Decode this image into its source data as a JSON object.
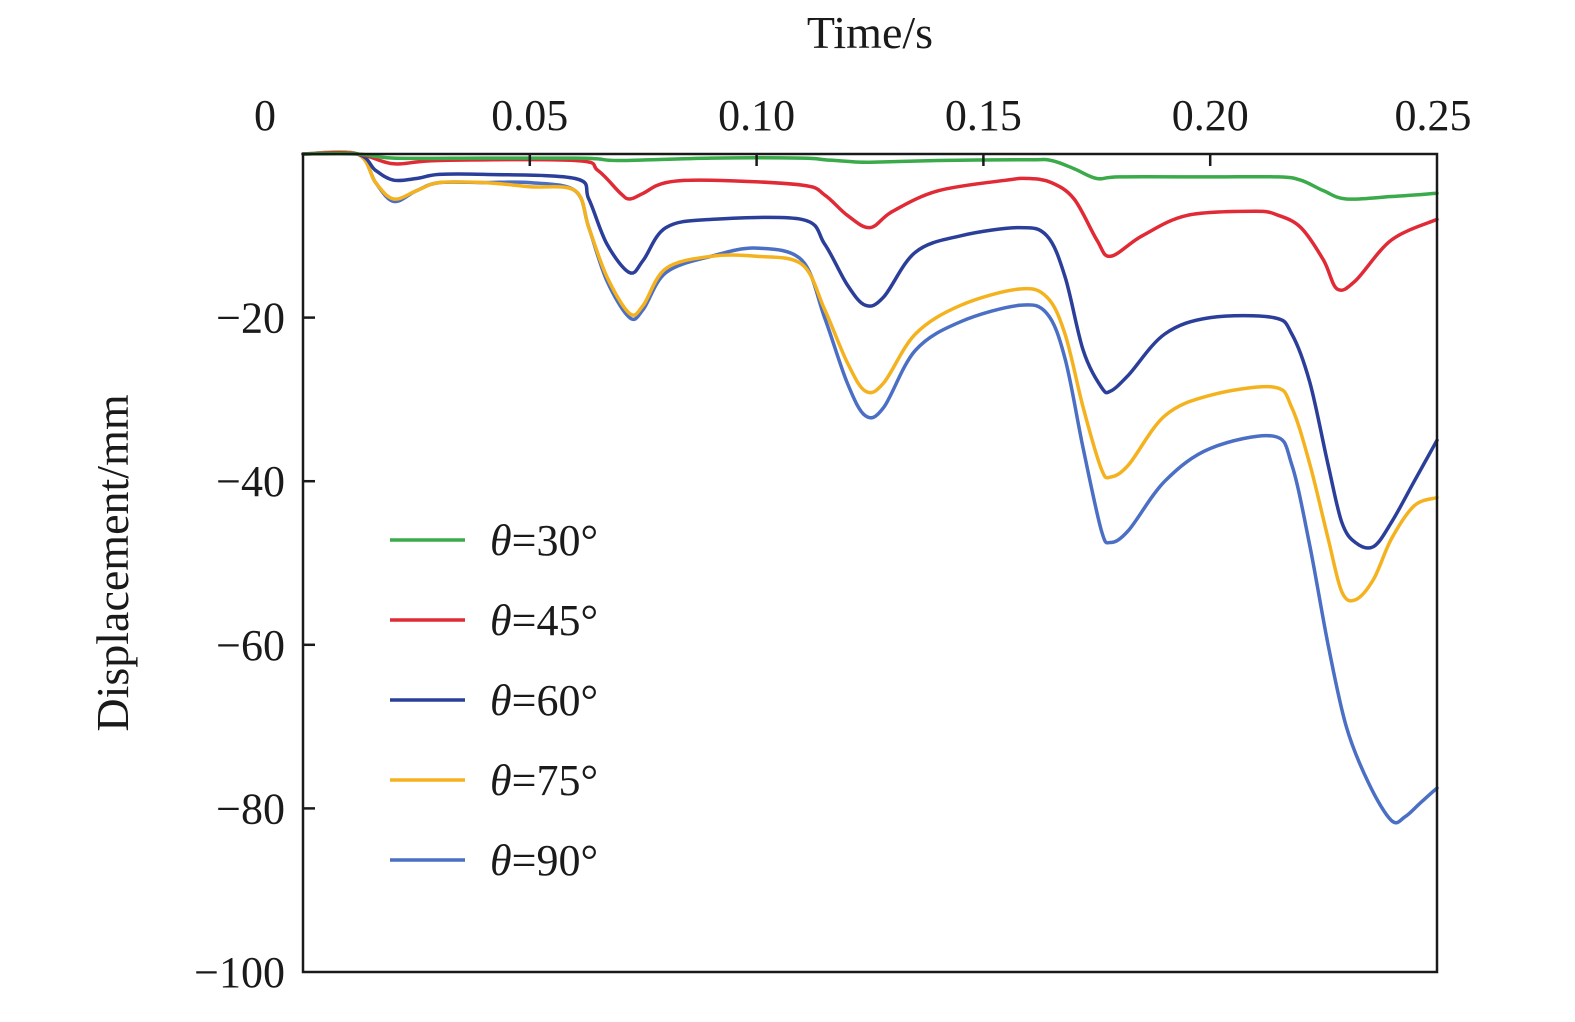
{
  "chart_data": {
    "type": "line",
    "title": "",
    "xlabel": "Time/s",
    "ylabel": "Displacement/mm",
    "xlim": [
      0,
      0.25
    ],
    "ylim": [
      -100,
      0
    ],
    "x_axis_position": "top",
    "x_ticks": [
      0,
      0.05,
      0.1,
      0.15,
      0.2,
      0.25
    ],
    "x_tick_labels": [
      "0",
      "0.05",
      "0.10",
      "0.15",
      "0.20",
      "0.25"
    ],
    "y_ticks": [
      0,
      -20,
      -40,
      -60,
      -80,
      -100
    ],
    "y_tick_labels": [
      "",
      "−20",
      "−40",
      "−60",
      "−80",
      "−100"
    ],
    "grid": false,
    "legend_position": "left-middle",
    "series": [
      {
        "name": "θ=30°",
        "name_symbol": "θ",
        "name_rest": "=30°",
        "color": "#3aaa4a",
        "x": [
          0,
          0.012,
          0.02,
          0.04,
          0.06,
          0.065,
          0.07,
          0.09,
          0.11,
          0.115,
          0.12,
          0.125,
          0.14,
          0.16,
          0.165,
          0.17,
          0.175,
          0.18,
          0.2,
          0.215,
          0.22,
          0.225,
          0.23,
          0.24,
          0.25
        ],
        "y": [
          0,
          0,
          -0.5,
          -0.5,
          -0.5,
          -0.6,
          -0.8,
          -0.5,
          -0.5,
          -0.7,
          -0.9,
          -1.0,
          -0.8,
          -0.7,
          -0.8,
          -1.8,
          -3.0,
          -2.8,
          -2.8,
          -2.8,
          -3.2,
          -4.5,
          -5.5,
          -5.2,
          -4.8
        ]
      },
      {
        "name": "θ=45°",
        "name_symbol": "θ",
        "name_rest": "=45°",
        "color": "#e02a35",
        "x": [
          0,
          0.012,
          0.02,
          0.03,
          0.06,
          0.065,
          0.07,
          0.072,
          0.075,
          0.08,
          0.09,
          0.11,
          0.115,
          0.12,
          0.125,
          0.13,
          0.14,
          0.155,
          0.16,
          0.165,
          0.17,
          0.175,
          0.178,
          0.185,
          0.195,
          0.21,
          0.215,
          0.22,
          0.225,
          0.228,
          0.232,
          0.24,
          0.25
        ],
        "y": [
          0,
          0,
          -1.2,
          -0.8,
          -0.8,
          -2.0,
          -4.8,
          -5.5,
          -4.8,
          -3.5,
          -3.2,
          -3.8,
          -5.0,
          -7.5,
          -9.0,
          -7.0,
          -4.5,
          -3.2,
          -3.0,
          -3.5,
          -5.5,
          -10.5,
          -12.5,
          -10.0,
          -7.5,
          -7.0,
          -7.5,
          -9.0,
          -13.0,
          -16.5,
          -15.5,
          -10.5,
          -8.0
        ]
      },
      {
        "name": "θ=60°",
        "name_symbol": "θ",
        "name_rest": "=60°",
        "color": "#2b3f9a",
        "x": [
          0,
          0.012,
          0.016,
          0.02,
          0.025,
          0.03,
          0.04,
          0.06,
          0.063,
          0.067,
          0.072,
          0.075,
          0.08,
          0.09,
          0.11,
          0.115,
          0.12,
          0.124,
          0.128,
          0.135,
          0.145,
          0.158,
          0.164,
          0.168,
          0.172,
          0.176,
          0.178,
          0.182,
          0.19,
          0.2,
          0.214,
          0.218,
          0.222,
          0.226,
          0.229,
          0.232,
          0.236,
          0.24,
          0.245,
          0.25
        ],
        "y": [
          0,
          0,
          -2.0,
          -3.2,
          -3.0,
          -2.5,
          -2.5,
          -3.0,
          -5.5,
          -11.0,
          -14.5,
          -13.0,
          -9.0,
          -8.0,
          -8.0,
          -11.0,
          -16.0,
          -18.5,
          -17.5,
          -12.0,
          -10.0,
          -9.0,
          -10.0,
          -15.0,
          -24.0,
          -28.5,
          -29.0,
          -27.0,
          -22.0,
          -20.0,
          -20.0,
          -22.0,
          -28.0,
          -38.0,
          -45.0,
          -47.5,
          -48.0,
          -45.0,
          -40.0,
          -35.0
        ]
      },
      {
        "name": "θ=75°",
        "name_symbol": "θ",
        "name_rest": "=75°",
        "color": "#f5b21f",
        "x": [
          0,
          0.012,
          0.016,
          0.02,
          0.025,
          0.03,
          0.04,
          0.05,
          0.06,
          0.063,
          0.067,
          0.072,
          0.075,
          0.08,
          0.09,
          0.1,
          0.11,
          0.115,
          0.12,
          0.124,
          0.128,
          0.135,
          0.145,
          0.158,
          0.164,
          0.168,
          0.172,
          0.176,
          0.178,
          0.182,
          0.19,
          0.2,
          0.214,
          0.218,
          0.222,
          0.226,
          0.229,
          0.232,
          0.236,
          0.24,
          0.245,
          0.25
        ],
        "y": [
          0,
          0,
          -3.5,
          -5.5,
          -4.5,
          -3.5,
          -3.5,
          -4.0,
          -4.5,
          -9.0,
          -15.0,
          -19.5,
          -18.5,
          -14.0,
          -12.5,
          -12.5,
          -13.5,
          -19.0,
          -25.5,
          -29.0,
          -28.0,
          -22.0,
          -18.5,
          -16.5,
          -17.5,
          -22.0,
          -31.0,
          -38.5,
          -39.5,
          -38.0,
          -32.0,
          -29.5,
          -28.5,
          -31.0,
          -38.0,
          -47.0,
          -53.5,
          -54.5,
          -52.0,
          -47.0,
          -43.0,
          -42.0
        ]
      },
      {
        "name": "θ=90°",
        "name_symbol": "θ",
        "name_rest": "=90°",
        "color": "#4a6fc4",
        "x": [
          0,
          0.012,
          0.016,
          0.02,
          0.025,
          0.03,
          0.04,
          0.05,
          0.06,
          0.063,
          0.067,
          0.072,
          0.075,
          0.08,
          0.09,
          0.1,
          0.11,
          0.115,
          0.12,
          0.124,
          0.128,
          0.135,
          0.145,
          0.158,
          0.164,
          0.168,
          0.172,
          0.176,
          0.178,
          0.182,
          0.19,
          0.2,
          0.214,
          0.218,
          0.222,
          0.226,
          0.23,
          0.235,
          0.24,
          0.243,
          0.246,
          0.25
        ],
        "y": [
          0,
          0,
          -3.5,
          -5.8,
          -4.5,
          -3.5,
          -3.5,
          -3.5,
          -4.5,
          -9.0,
          -15.5,
          -20.0,
          -19.0,
          -14.5,
          -12.5,
          -11.5,
          -13.0,
          -20.0,
          -28.0,
          -32.0,
          -31.0,
          -24.0,
          -20.5,
          -18.5,
          -19.5,
          -25.0,
          -36.0,
          -46.0,
          -47.5,
          -46.0,
          -40.0,
          -36.0,
          -34.5,
          -38.0,
          -48.0,
          -60.0,
          -70.0,
          -77.0,
          -81.5,
          -81.0,
          -79.5,
          -77.5
        ]
      }
    ]
  }
}
